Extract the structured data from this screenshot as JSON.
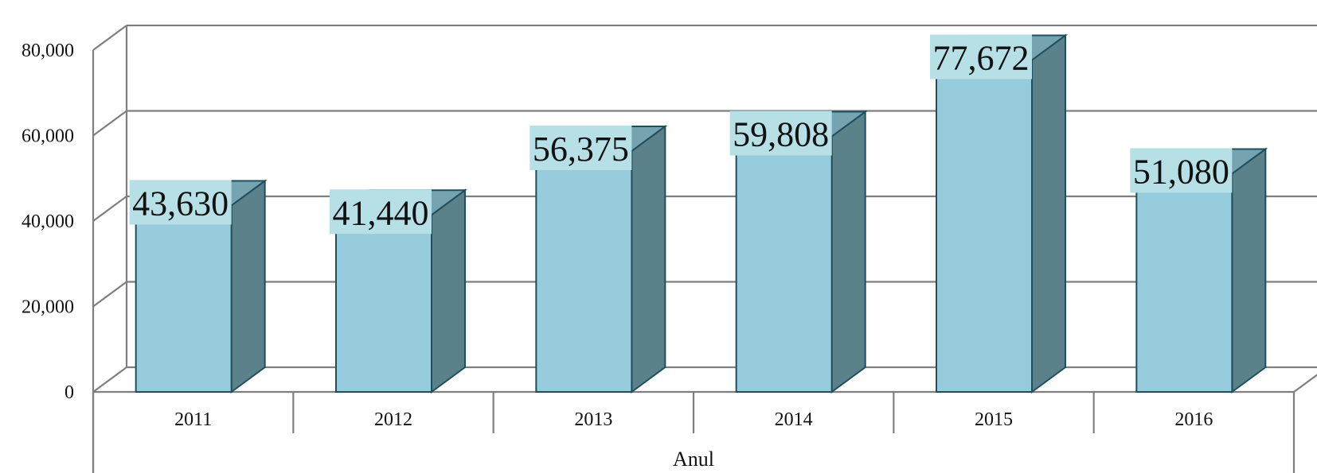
{
  "chart_data": {
    "type": "bar",
    "style": "3d-column",
    "categories": [
      "2011",
      "2012",
      "2013",
      "2014",
      "2015",
      "2016"
    ],
    "values": [
      43630,
      41440,
      56375,
      59808,
      77672,
      51080
    ],
    "data_labels": [
      "43,630",
      "41,440",
      "56,375",
      "59,808",
      "77,672",
      "51,080"
    ],
    "xlabel": "Anul",
    "ylabel": "",
    "ylim": [
      0,
      80000
    ],
    "yticks": [
      0,
      20000,
      40000,
      60000,
      80000
    ],
    "ytick_labels": [
      "0",
      "20,000",
      "40,000",
      "60,000",
      "80,000"
    ],
    "grid": true,
    "legend": "none",
    "colors": {
      "bar_front": "#96ccdc",
      "bar_side": "#5b818b",
      "bar_top": "#76a3b0",
      "bar_outline": "#1f4f5c",
      "label_background": "#b7dfe6",
      "grid": "#7f7f7f"
    }
  }
}
